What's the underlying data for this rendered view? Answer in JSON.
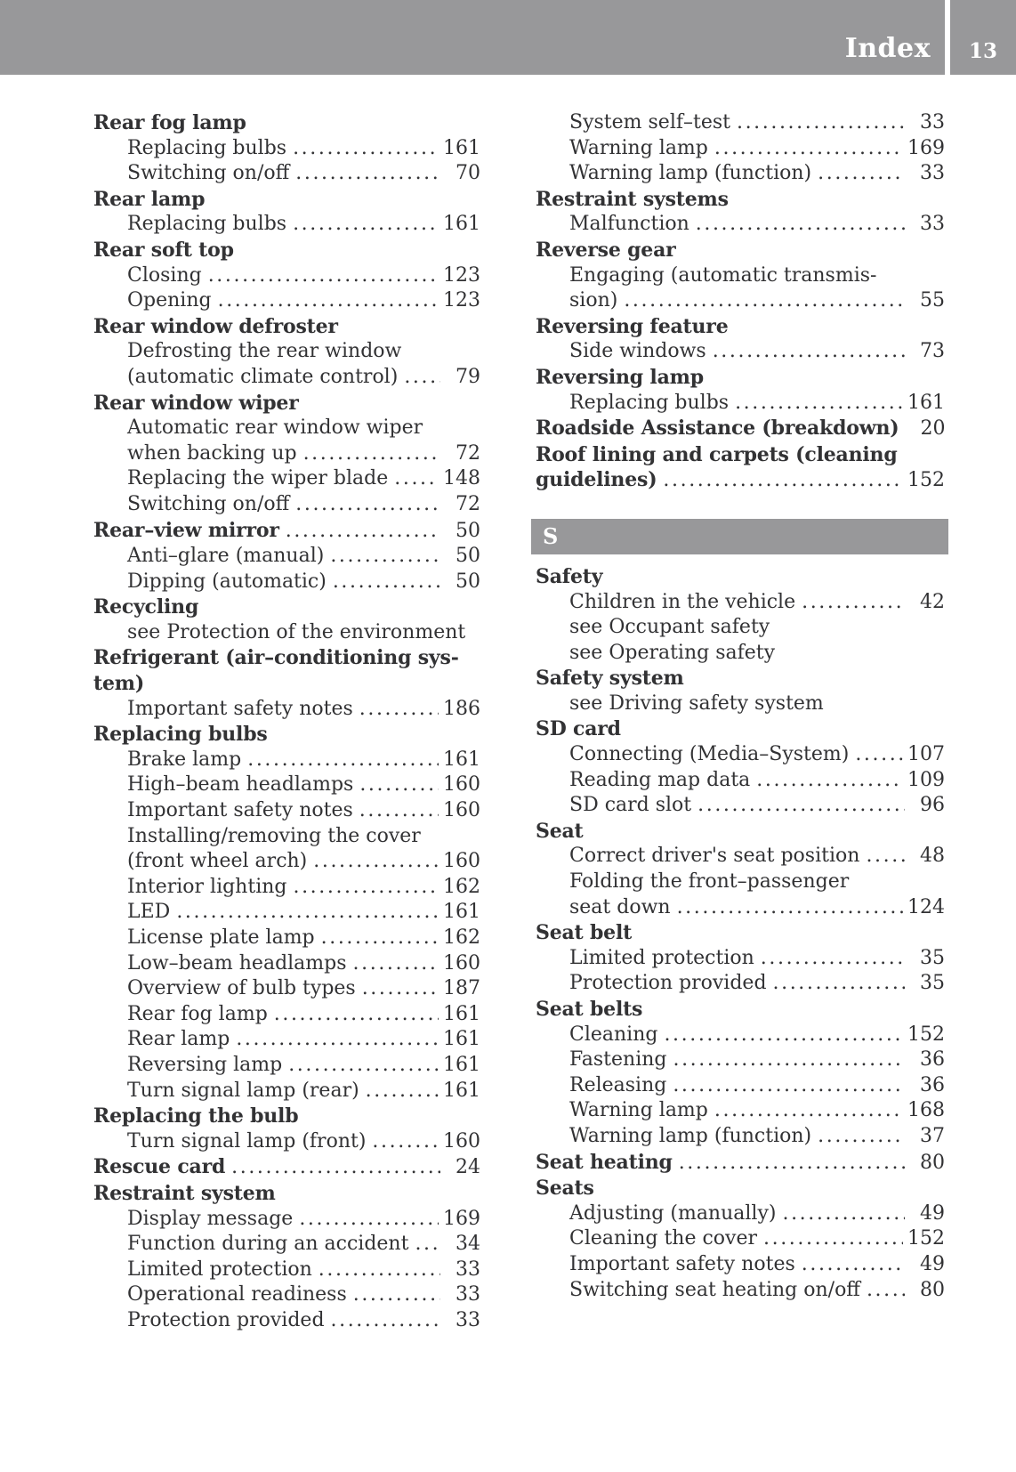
{
  "header": {
    "title": "Index",
    "page": "13"
  },
  "colors": {
    "bar_gray": "#98989a",
    "text": "#323234",
    "background": "#ffffff"
  },
  "index": {
    "left": [
      {
        "b": 1,
        "t": "Rear fog lamp"
      },
      {
        "i": 1,
        "t": "Replacing bulbs",
        "p": "161"
      },
      {
        "i": 1,
        "t": "Switching on/off",
        "p": "70"
      },
      {
        "b": 1,
        "t": "Rear lamp"
      },
      {
        "i": 1,
        "t": "Replacing bulbs",
        "p": "161"
      },
      {
        "b": 1,
        "t": "Rear soft top"
      },
      {
        "i": 1,
        "t": "Closing",
        "p": "123"
      },
      {
        "i": 1,
        "t": "Opening",
        "p": "123"
      },
      {
        "b": 1,
        "t": "Rear window defroster"
      },
      {
        "i": 1,
        "t": "Defrosting the rear window"
      },
      {
        "i": 1,
        "t": "(automatic climate control)",
        "p": "79"
      },
      {
        "b": 1,
        "t": "Rear window wiper"
      },
      {
        "i": 1,
        "t": "Automatic rear window wiper"
      },
      {
        "i": 1,
        "t": "when backing up",
        "p": "72"
      },
      {
        "i": 1,
        "t": "Replacing the wiper blade",
        "p": "148"
      },
      {
        "i": 1,
        "t": "Switching on/off",
        "p": "72"
      },
      {
        "b": 1,
        "t": "Rear–view mirror",
        "p": "50"
      },
      {
        "i": 1,
        "t": "Anti–glare (manual)",
        "p": "50"
      },
      {
        "i": 1,
        "t": "Dipping (automatic)",
        "p": "50"
      },
      {
        "b": 1,
        "t": "Recycling"
      },
      {
        "i": 1,
        "t": "see Protection of the environment"
      },
      {
        "b": 1,
        "t": "Refrigerant (air–conditioning sys-"
      },
      {
        "b": 1,
        "t": "tem)"
      },
      {
        "i": 1,
        "t": "Important safety notes",
        "p": "186"
      },
      {
        "b": 1,
        "t": "Replacing bulbs"
      },
      {
        "i": 1,
        "t": "Brake lamp",
        "p": "161"
      },
      {
        "i": 1,
        "t": "High–beam headlamps",
        "p": "160"
      },
      {
        "i": 1,
        "t": "Important safety notes",
        "p": "160"
      },
      {
        "i": 1,
        "t": "Installing/removing the cover"
      },
      {
        "i": 1,
        "t": "(front wheel arch)",
        "p": "160"
      },
      {
        "i": 1,
        "t": "Interior lighting",
        "p": "162"
      },
      {
        "i": 1,
        "t": "LED",
        "p": "161"
      },
      {
        "i": 1,
        "t": "License plate lamp",
        "p": "162"
      },
      {
        "i": 1,
        "t": "Low–beam headlamps",
        "p": "160"
      },
      {
        "i": 1,
        "t": "Overview of bulb types",
        "p": "187"
      },
      {
        "i": 1,
        "t": "Rear fog lamp",
        "p": "161"
      },
      {
        "i": 1,
        "t": "Rear lamp",
        "p": "161"
      },
      {
        "i": 1,
        "t": "Reversing lamp",
        "p": "161"
      },
      {
        "i": 1,
        "t": "Turn signal lamp (rear)",
        "p": "161"
      },
      {
        "b": 1,
        "t": "Replacing the bulb"
      },
      {
        "i": 1,
        "t": "Turn signal lamp (front)",
        "p": "160"
      },
      {
        "b": 1,
        "t": "Rescue card",
        "p": "24"
      },
      {
        "b": 1,
        "t": "Restraint system"
      },
      {
        "i": 1,
        "t": "Display message",
        "p": "169"
      },
      {
        "i": 1,
        "t": "Function during an accident",
        "p": "34"
      },
      {
        "i": 1,
        "t": "Limited protection",
        "p": "33"
      },
      {
        "i": 1,
        "t": "Operational readiness",
        "p": "33"
      },
      {
        "i": 1,
        "t": "Protection provided",
        "p": "33"
      }
    ],
    "right": [
      {
        "i": 1,
        "t": "System self–test",
        "p": "33"
      },
      {
        "i": 1,
        "t": "Warning lamp",
        "p": "169"
      },
      {
        "i": 1,
        "t": "Warning lamp (function)",
        "p": "33"
      },
      {
        "b": 1,
        "t": "Restraint systems"
      },
      {
        "i": 1,
        "t": "Malfunction",
        "p": "33"
      },
      {
        "b": 1,
        "t": "Reverse gear"
      },
      {
        "i": 1,
        "t": "Engaging (automatic transmis-"
      },
      {
        "i": 1,
        "t": "sion)",
        "p": "55"
      },
      {
        "b": 1,
        "t": "Reversing feature"
      },
      {
        "i": 1,
        "t": "Side windows",
        "p": "73"
      },
      {
        "b": 1,
        "t": "Reversing lamp"
      },
      {
        "i": 1,
        "t": "Replacing bulbs",
        "p": "161"
      },
      {
        "b": 1,
        "t": "Roadside Assistance (breakdown)",
        "p": "20"
      },
      {
        "b": 1,
        "t": "Roof lining and carpets (cleaning"
      },
      {
        "b": 1,
        "t": "guidelines)",
        "p": "152"
      },
      {
        "s": 1,
        "t": "S"
      },
      {
        "b": 1,
        "t": "Safety"
      },
      {
        "i": 1,
        "t": "Children in the vehicle",
        "p": "42"
      },
      {
        "i": 1,
        "t": "see Occupant safety"
      },
      {
        "i": 1,
        "t": "see Operating safety"
      },
      {
        "b": 1,
        "t": "Safety system"
      },
      {
        "i": 1,
        "t": "see Driving safety system"
      },
      {
        "b": 1,
        "t": "SD card"
      },
      {
        "i": 1,
        "t": "Connecting (Media–System)",
        "p": "107"
      },
      {
        "i": 1,
        "t": "Reading map data",
        "p": "109"
      },
      {
        "i": 1,
        "t": "SD card slot",
        "p": "96"
      },
      {
        "b": 1,
        "t": "Seat"
      },
      {
        "i": 1,
        "t": "Correct driver's seat position",
        "p": "48"
      },
      {
        "i": 1,
        "t": "Folding the front–passenger"
      },
      {
        "i": 1,
        "t": "seat down",
        "p": "124"
      },
      {
        "b": 1,
        "t": "Seat belt"
      },
      {
        "i": 1,
        "t": "Limited protection",
        "p": "35"
      },
      {
        "i": 1,
        "t": "Protection provided",
        "p": "35"
      },
      {
        "b": 1,
        "t": "Seat belts"
      },
      {
        "i": 1,
        "t": "Cleaning",
        "p": "152"
      },
      {
        "i": 1,
        "t": "Fastening",
        "p": "36"
      },
      {
        "i": 1,
        "t": "Releasing",
        "p": "36"
      },
      {
        "i": 1,
        "t": "Warning lamp",
        "p": "168"
      },
      {
        "i": 1,
        "t": "Warning lamp (function)",
        "p": "37"
      },
      {
        "b": 1,
        "t": "Seat heating",
        "p": "80"
      },
      {
        "b": 1,
        "t": "Seats"
      },
      {
        "i": 1,
        "t": "Adjusting (manually)",
        "p": "49"
      },
      {
        "i": 1,
        "t": "Cleaning the cover",
        "p": "152"
      },
      {
        "i": 1,
        "t": "Important safety notes",
        "p": "49"
      },
      {
        "i": 1,
        "t": "Switching seat heating on/off",
        "p": "80"
      }
    ]
  }
}
